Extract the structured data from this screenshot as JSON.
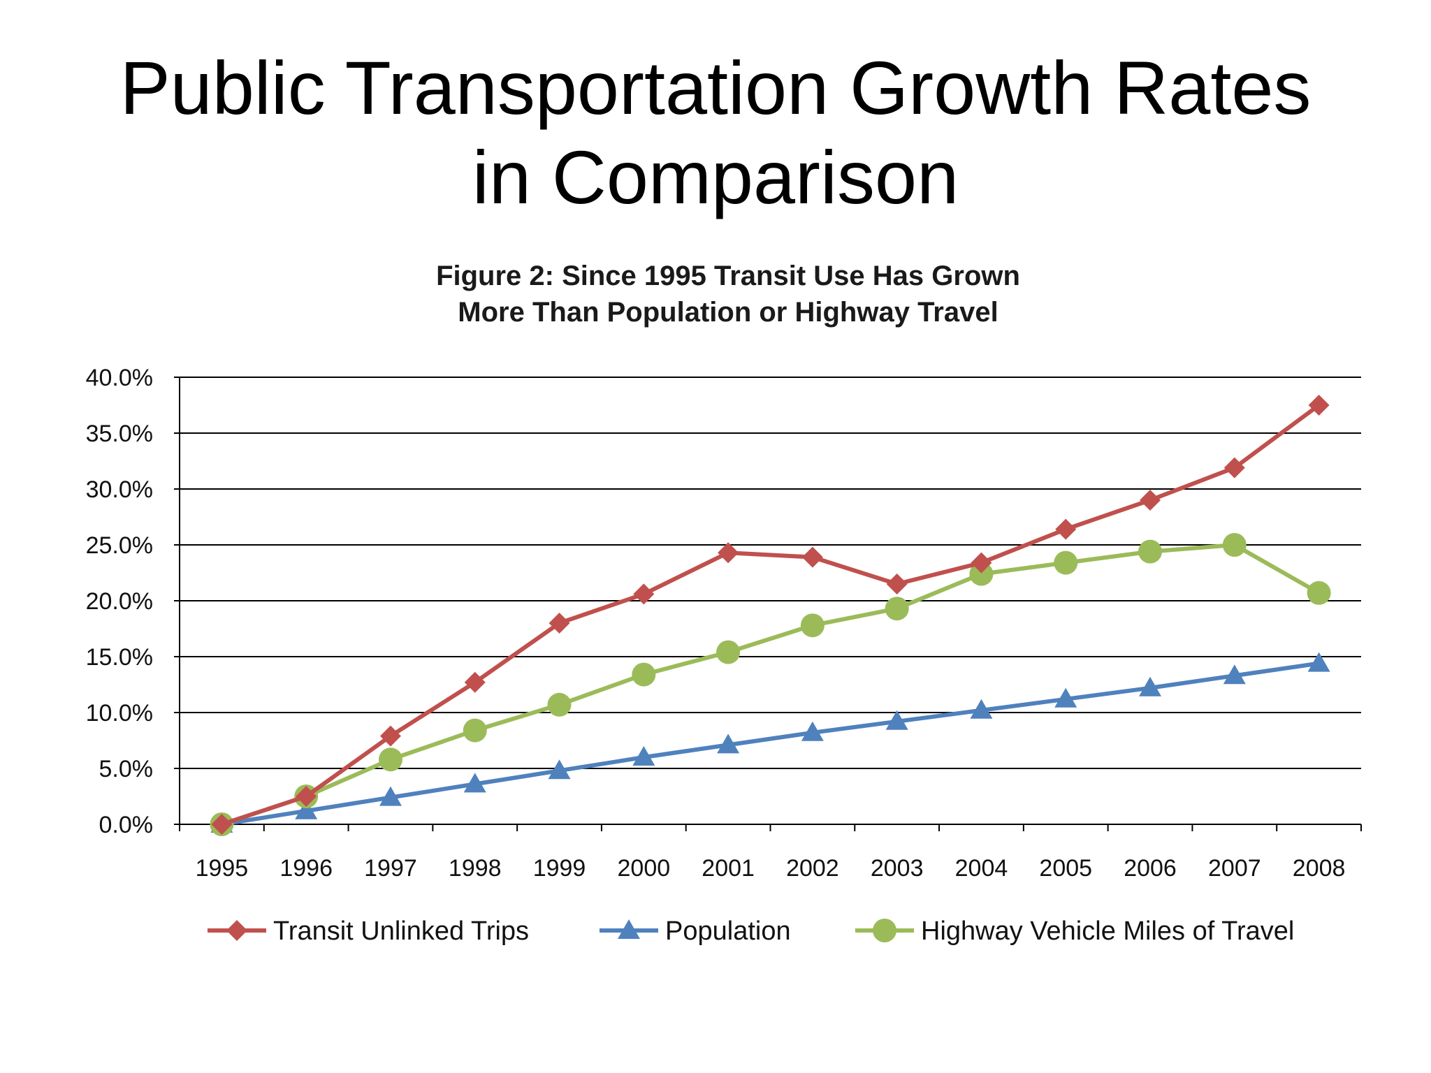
{
  "slide": {
    "title_line1": "Public Transportation Growth Rates",
    "title_line2": "in Comparison"
  },
  "chart_data": {
    "type": "line",
    "title": "Figure 2: Since 1995 Transit Use Has Grown",
    "subtitle": "More Than Population or Highway Travel",
    "xlabel": "",
    "ylabel": "",
    "x": [
      "1995",
      "1996",
      "1997",
      "1998",
      "1999",
      "2000",
      "2001",
      "2002",
      "2003",
      "2004",
      "2005",
      "2006",
      "2007",
      "2008"
    ],
    "ylim": [
      0,
      40
    ],
    "yticks": [
      "0.0%",
      "5.0%",
      "10.0%",
      "15.0%",
      "20.0%",
      "25.0%",
      "30.0%",
      "35.0%",
      "40.0%"
    ],
    "grid": true,
    "legend_position": "bottom",
    "series": [
      {
        "name": "Transit Unlinked Trips",
        "marker": "diamond",
        "color": "#c0504d",
        "values": [
          0.0,
          2.5,
          7.9,
          12.7,
          18.0,
          20.6,
          24.3,
          23.9,
          21.5,
          23.4,
          26.4,
          29.0,
          31.9,
          37.5
        ]
      },
      {
        "name": "Population",
        "marker": "triangle",
        "color": "#4f81bd",
        "values": [
          0.0,
          1.2,
          2.4,
          3.6,
          4.8,
          6.0,
          7.1,
          8.2,
          9.2,
          10.2,
          11.2,
          12.2,
          13.3,
          14.4
        ]
      },
      {
        "name": "Highway Vehicle Miles of Travel",
        "marker": "circle",
        "color": "#9bbb59",
        "values": [
          0.0,
          2.5,
          5.8,
          8.4,
          10.7,
          13.4,
          15.4,
          17.8,
          19.3,
          22.4,
          23.4,
          24.4,
          25.0,
          20.7
        ]
      }
    ]
  }
}
